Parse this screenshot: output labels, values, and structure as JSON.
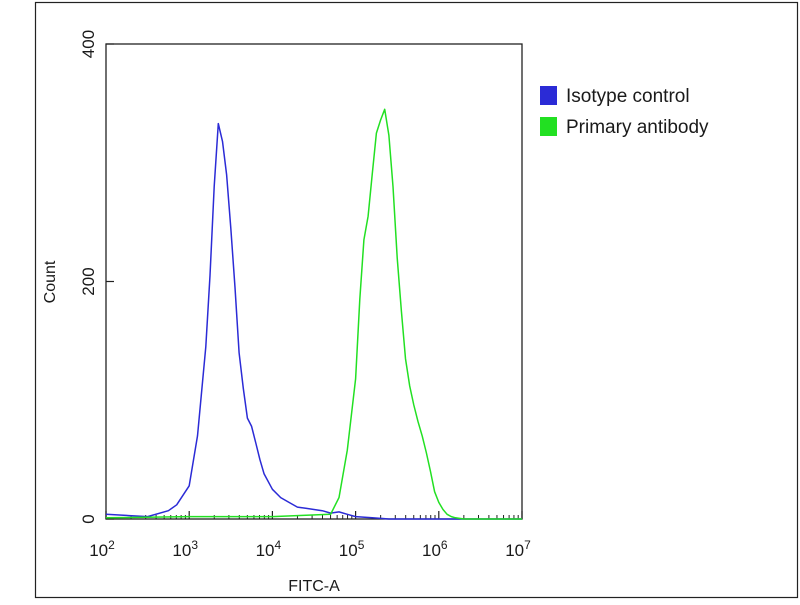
{
  "chart_data": {
    "type": "line",
    "title": "",
    "xlabel": "FITC-A",
    "ylabel": "Count",
    "x_scale": "log",
    "xlim": [
      100,
      10000000
    ],
    "ylim": [
      0,
      400
    ],
    "x_ticks": [
      {
        "value": 100,
        "base": "10",
        "exp": "2"
      },
      {
        "value": 1000,
        "base": "10",
        "exp": "3"
      },
      {
        "value": 10000,
        "base": "10",
        "exp": "4"
      },
      {
        "value": 100000,
        "base": "10",
        "exp": "5"
      },
      {
        "value": 1000000,
        "base": "10",
        "exp": "6"
      },
      {
        "value": 10000000,
        "base": "10",
        "exp": "7"
      }
    ],
    "y_ticks": [
      {
        "value": 0,
        "label": "0"
      },
      {
        "value": 200,
        "label": "200"
      },
      {
        "value": 400,
        "label": "400"
      }
    ],
    "grid": false,
    "legend_position": "top-right",
    "series": [
      {
        "name": "Isotype control",
        "color": "#2b2bd6",
        "x": [
          100,
          316,
          562,
          708,
          1000,
          1259,
          1585,
          1778,
          1995,
          2239,
          2512,
          2818,
          3162,
          3548,
          3981,
          4467,
          5012,
          5623,
          6310,
          7079,
          7943,
          10000,
          12589,
          15849,
          19953,
          25119,
          31623,
          39811,
          50119,
          63096,
          79433,
          100000,
          158489,
          251189,
          1000000,
          10000000
        ],
        "y": [
          4,
          2,
          7,
          12,
          28,
          70,
          145,
          205,
          280,
          333,
          318,
          290,
          245,
          195,
          140,
          110,
          85,
          78,
          64,
          50,
          38,
          25,
          18,
          14,
          10,
          9,
          8,
          7,
          5,
          6,
          4,
          2,
          1,
          0,
          0,
          0
        ]
      },
      {
        "name": "Primary antibody",
        "color": "#22e022",
        "x": [
          100,
          1000,
          10000,
          50119,
          63096,
          79433,
          100000,
          112202,
          125893,
          141254,
          158489,
          177828,
          199526,
          223872,
          251189,
          281838,
          316228,
          354813,
          398107,
          446684,
          501187,
          562341,
          630957,
          707946,
          794328,
          891251,
          1000000,
          1122018,
          1258925,
          1412538,
          1584893,
          2000000,
          10000000
        ],
        "y": [
          1,
          2,
          2,
          4,
          18,
          58,
          118,
          185,
          235,
          255,
          290,
          325,
          336,
          345,
          323,
          280,
          220,
          175,
          135,
          112,
          96,
          82,
          70,
          56,
          40,
          23,
          14,
          8,
          4,
          2,
          1,
          0,
          0
        ]
      }
    ]
  }
}
